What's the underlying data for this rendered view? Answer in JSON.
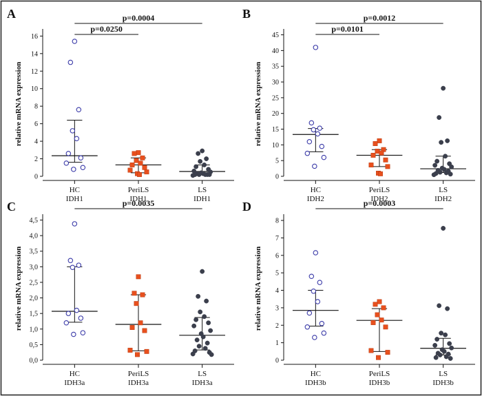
{
  "colors": {
    "HC": "#3a3aa8",
    "PeriLS": "#e8501e",
    "LS": "#3b3f4c",
    "axis": "#111111",
    "frame": "#222222"
  },
  "chart_data": [
    {
      "panel": "A",
      "type": "scatter",
      "ylabel": "relative mRNA expression",
      "ylim": [
        0,
        16.5
      ],
      "yticks": [
        0,
        2,
        4,
        6,
        8,
        10,
        12,
        14,
        16
      ],
      "ytick_labels": [
        "0",
        "2",
        "4",
        "6",
        "8",
        "10",
        "12",
        "14",
        "16"
      ],
      "categories": [
        {
          "line1": "HC",
          "line2": "IDH1"
        },
        {
          "line1": "PeriLS",
          "line2": "IDH1"
        },
        {
          "line1": "LS",
          "line2": "IDH1"
        }
      ],
      "series": [
        {
          "group": "HC",
          "marker": "open-circle",
          "median": 2.35,
          "q1": 1.6,
          "q3": 6.4,
          "values": [
            15.4,
            13.0,
            7.6,
            5.2,
            4.3,
            2.6,
            2.1,
            1.5,
            1.0,
            0.8
          ]
        },
        {
          "group": "PeriLS",
          "marker": "square",
          "median": 1.3,
          "q1": 0.4,
          "q3": 2.1,
          "values": [
            2.7,
            2.6,
            2.1,
            1.8,
            1.5,
            1.3,
            1.0,
            0.7,
            0.5,
            0.3,
            0.2
          ]
        },
        {
          "group": "LS",
          "marker": "filled-circle",
          "median": 0.55,
          "q1": 0.3,
          "q3": 1.3,
          "values": [
            2.9,
            2.6,
            2.0,
            1.7,
            1.3,
            1.1,
            0.8,
            0.6,
            0.5,
            0.4,
            0.3,
            0.3,
            0.2,
            0.2,
            0.2,
            0.2,
            0.2,
            0.1
          ]
        }
      ],
      "comparisons": [
        {
          "from": 0,
          "to": 1,
          "label": "p=0.0250",
          "level": 1
        },
        {
          "from": 0,
          "to": 2,
          "label": "p=0.0004",
          "level": 2
        }
      ]
    },
    {
      "panel": "B",
      "type": "scatter",
      "ylabel": "relative mRNA expression",
      "ylim": [
        0,
        46
      ],
      "yticks": [
        0,
        5,
        10,
        15,
        20,
        25,
        30,
        35,
        40,
        45
      ],
      "ytick_labels": [
        "0",
        "5",
        "10",
        "15",
        "20",
        "25",
        "30",
        "35",
        "40",
        "45"
      ],
      "categories": [
        {
          "line1": "HC",
          "line2": "IDH2"
        },
        {
          "line1": "PeriLS",
          "line2": "IDH2"
        },
        {
          "line1": "LS",
          "line2": "IDH2"
        }
      ],
      "series": [
        {
          "group": "HC",
          "marker": "open-circle",
          "median": 13.3,
          "q1": 7.8,
          "q3": 15.2,
          "values": [
            41.0,
            17.0,
            15.3,
            14.8,
            13.5,
            11.0,
            9.5,
            7.3,
            6.0,
            3.2
          ]
        },
        {
          "group": "PeriLS",
          "marker": "square",
          "median": 6.7,
          "q1": 3.1,
          "q3": 8.5,
          "values": [
            11.3,
            10.4,
            8.5,
            8.0,
            7.4,
            6.7,
            5.2,
            3.6,
            3.1,
            1.0,
            0.8
          ]
        },
        {
          "group": "LS",
          "marker": "filled-circle",
          "median": 2.4,
          "q1": 1.2,
          "q3": 6.4,
          "values": [
            28.0,
            18.7,
            11.3,
            10.8,
            6.4,
            4.8,
            4.0,
            3.5,
            3.0,
            2.6,
            2.2,
            1.9,
            1.6,
            1.3,
            1.1,
            0.9,
            0.7,
            0.5
          ]
        }
      ],
      "comparisons": [
        {
          "from": 0,
          "to": 1,
          "label": "p=0.0101",
          "level": 1
        },
        {
          "from": 0,
          "to": 2,
          "label": "p=0.0012",
          "level": 2
        }
      ]
    },
    {
      "panel": "C",
      "type": "scatter",
      "ylabel": "relative mRNA expression",
      "ylim": [
        0,
        4.6
      ],
      "yticks": [
        0,
        0.5,
        1,
        1.5,
        2,
        2.5,
        3,
        3.5,
        4,
        4.5
      ],
      "ytick_labels": [
        "0,0",
        "0,5",
        "1,0",
        "1,5",
        "2,0",
        "2,5",
        "3,0",
        "3,5",
        "4,0",
        "4,5"
      ],
      "categories": [
        {
          "line1": "HC",
          "line2": "IDH3a"
        },
        {
          "line1": "PeriLS",
          "line2": "IDH3a"
        },
        {
          "line1": "LS",
          "line2": "IDH3a"
        }
      ],
      "series": [
        {
          "group": "HC",
          "marker": "open-circle",
          "median": 1.57,
          "q1": 1.22,
          "q3": 3.0,
          "values": [
            4.38,
            3.2,
            3.05,
            2.98,
            1.6,
            1.5,
            1.35,
            1.2,
            0.88,
            0.83
          ]
        },
        {
          "group": "PeriLS",
          "marker": "square",
          "median": 1.15,
          "q1": 0.3,
          "q3": 2.1,
          "values": [
            2.68,
            2.15,
            2.1,
            1.82,
            1.2,
            1.05,
            0.95,
            0.32,
            0.28,
            0.18
          ]
        },
        {
          "group": "LS",
          "marker": "filled-circle",
          "median": 0.8,
          "q1": 0.33,
          "q3": 1.37,
          "values": [
            2.85,
            2.05,
            1.9,
            1.55,
            1.4,
            1.3,
            1.2,
            1.1,
            0.95,
            0.85,
            0.75,
            0.65,
            0.55,
            0.45,
            0.38,
            0.3,
            0.25,
            0.2,
            0.18
          ]
        }
      ],
      "comparisons": [
        {
          "from": 0,
          "to": 2,
          "label": "p=0.0035",
          "level": 1
        }
      ]
    },
    {
      "panel": "D",
      "type": "scatter",
      "ylabel": "relative mRNA expression",
      "ylim": [
        0,
        8.2
      ],
      "yticks": [
        0,
        1,
        2,
        3,
        4,
        5,
        6,
        7,
        8
      ],
      "ytick_labels": [
        "0",
        "1",
        "2",
        "3",
        "4",
        "5",
        "6",
        "7",
        "8"
      ],
      "categories": [
        {
          "line1": "HC",
          "line2": "IDH3b"
        },
        {
          "line1": "PeriLS",
          "line2": "IDH3b"
        },
        {
          "line1": "LS",
          "line2": "IDH3b"
        }
      ],
      "series": [
        {
          "group": "HC",
          "marker": "open-circle",
          "median": 2.85,
          "q1": 1.95,
          "q3": 4.0,
          "values": [
            6.15,
            4.8,
            4.45,
            3.95,
            3.35,
            2.7,
            2.1,
            1.9,
            1.55,
            1.3
          ]
        },
        {
          "group": "PeriLS",
          "marker": "square",
          "median": 2.28,
          "q1": 0.5,
          "q3": 2.95,
          "values": [
            3.35,
            3.2,
            3.0,
            2.6,
            2.3,
            2.15,
            1.9,
            0.55,
            0.45,
            0.15
          ]
        },
        {
          "group": "LS",
          "marker": "filled-circle",
          "median": 0.68,
          "q1": 0.3,
          "q3": 1.25,
          "values": [
            7.55,
            3.12,
            2.95,
            1.55,
            1.45,
            1.2,
            0.95,
            0.85,
            0.7,
            0.6,
            0.5,
            0.4,
            0.35,
            0.3,
            0.2,
            0.15,
            0.1
          ]
        }
      ],
      "comparisons": [
        {
          "from": 0,
          "to": 2,
          "label": "p=0.0003",
          "level": 1
        }
      ]
    }
  ]
}
